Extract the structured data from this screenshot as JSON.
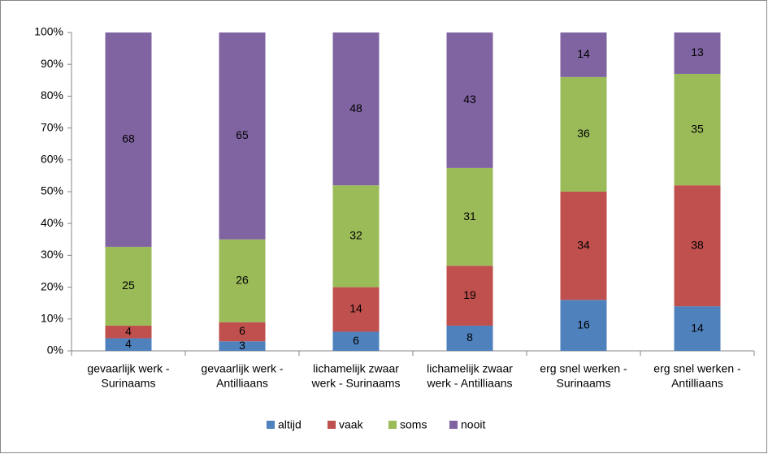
{
  "chart_data": {
    "type": "bar",
    "stack": "percent",
    "categories": [
      [
        "gevaarlijk werk -",
        "Surinaams"
      ],
      [
        "gevaarlijk werk -",
        "Antilliaans"
      ],
      [
        "lichamelijk zwaar",
        "werk - Surinaams"
      ],
      [
        "lichamelijk zwaar",
        "werk - Antilliaans"
      ],
      [
        "erg snel werken -",
        "Surinaams"
      ],
      [
        "erg snel werken -",
        "Antilliaans"
      ]
    ],
    "series": [
      {
        "name": "altijd",
        "color": "#4f81bd",
        "values": [
          4,
          3,
          6,
          8,
          16,
          14
        ]
      },
      {
        "name": "vaak",
        "color": "#c0504d",
        "values": [
          4,
          6,
          14,
          19,
          34,
          38
        ]
      },
      {
        "name": "soms",
        "color": "#9bbb59",
        "values": [
          25,
          26,
          32,
          31,
          36,
          35
        ]
      },
      {
        "name": "nooit",
        "color": "#8064a2",
        "values": [
          68,
          65,
          48,
          43,
          14,
          13
        ]
      }
    ],
    "ylim": [
      0,
      100
    ],
    "yticks": [
      {
        "value": 0,
        "label": "0%"
      },
      {
        "value": 10,
        "label": "10%"
      },
      {
        "value": 20,
        "label": "20%"
      },
      {
        "value": 30,
        "label": "30%"
      },
      {
        "value": 40,
        "label": "40%"
      },
      {
        "value": 50,
        "label": "50%"
      },
      {
        "value": 60,
        "label": "60%"
      },
      {
        "value": 70,
        "label": "70%"
      },
      {
        "value": 80,
        "label": "80%"
      },
      {
        "value": 90,
        "label": "90%"
      },
      {
        "value": 100,
        "label": "100%"
      }
    ],
    "grid": false,
    "legend": "bottom"
  }
}
